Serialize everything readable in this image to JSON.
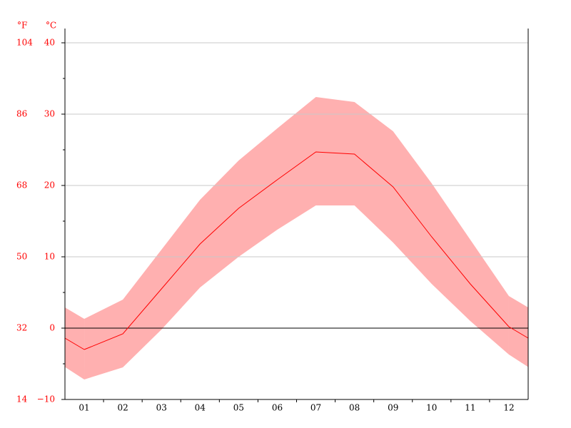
{
  "chart_data": {
    "type": "line",
    "categories": [
      "01",
      "02",
      "03",
      "04",
      "05",
      "06",
      "07",
      "08",
      "09",
      "10",
      "11",
      "12"
    ],
    "values": [
      -3.0,
      -0.8,
      5.5,
      11.8,
      16.8,
      20.8,
      24.7,
      24.4,
      19.8,
      12.8,
      6.2,
      0.2
    ],
    "band": {
      "upper": [
        1.3,
        4.0,
        11.0,
        18.0,
        23.5,
        28.0,
        32.4,
        31.7,
        27.6,
        20.3,
        12.4,
        4.5
      ],
      "lower": [
        -7.2,
        -5.5,
        -0.2,
        5.7,
        10.0,
        13.8,
        17.2,
        17.2,
        12.0,
        6.2,
        1.0,
        -3.7
      ]
    },
    "color": "#ff0000",
    "band_color": "#ffb0b0",
    "y_unit": "°C",
    "y2_unit": "°F",
    "ylim": [
      -10,
      40
    ],
    "yticks": [
      {
        "value": -10,
        "label": "−10"
      },
      0,
      10,
      20,
      30,
      40
    ],
    "yminorticks": [
      -5,
      5,
      15,
      25,
      35
    ],
    "y2lim": [
      14,
      104
    ],
    "y2ticks": [
      14,
      32,
      50,
      68,
      86,
      104
    ],
    "grid": true
  }
}
